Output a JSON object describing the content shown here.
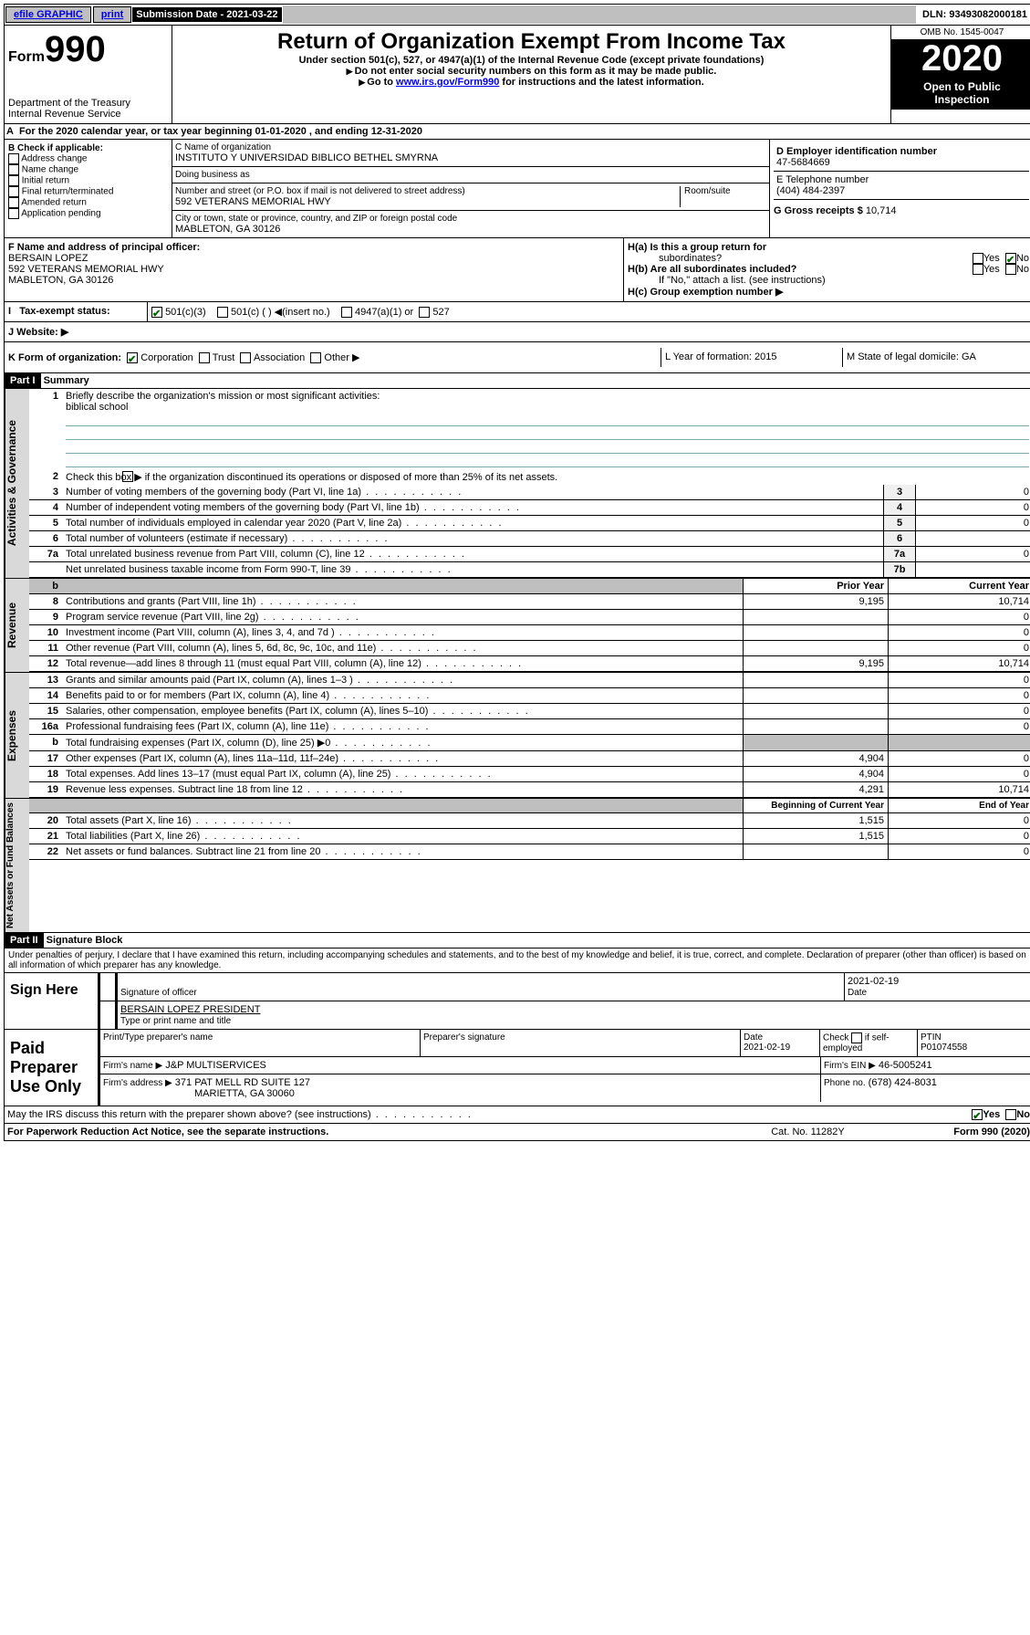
{
  "colors": {
    "accent": "#000000",
    "link": "#0000ee",
    "grey": "#bfbfbf",
    "rule": "#7aa"
  },
  "topbar": {
    "efile": "efile GRAPHIC",
    "print": "print",
    "sub_label": "Submission Date - 2021-03-22",
    "dln": "DLN: 93493082000181"
  },
  "header": {
    "form_word": "Form",
    "form_num": "990",
    "dept": "Department of the Treasury",
    "irs": "Internal Revenue Service",
    "title": "Return of Organization Exempt From Income Tax",
    "sub1": "Under section 501(c), 527, or 4947(a)(1) of the Internal Revenue Code (except private foundations)",
    "sub2": "Do not enter social security numbers on this form as it may be made public.",
    "sub3_a": "Go to ",
    "sub3_link": "www.irs.gov/Form990",
    "sub3_b": " for instructions and the latest information.",
    "omb": "OMB No. 1545-0047",
    "year": "2020",
    "inspect": "Open to Public Inspection"
  },
  "rowA": {
    "a": "A",
    "text": "For the 2020 calendar year, or tax year beginning 01-01-2020    , and ending 12-31-2020"
  },
  "boxB": {
    "hdr": "B Check if applicable:",
    "items": [
      "Address change",
      "Name change",
      "Initial return",
      "Final return/terminated",
      "Amended return",
      "Application pending"
    ]
  },
  "boxC": {
    "name_lbl": "C Name of organization",
    "name": "INSTITUTO Y UNIVERSIDAD BIBLICO BETHEL SMYRNA",
    "dba_lbl": "Doing business as",
    "dba": "",
    "addr_lbl": "Number and street (or P.O. box if mail is not delivered to street address)",
    "room_lbl": "Room/suite",
    "addr": "592 VETERANS MEMORIAL HWY",
    "city_lbl": "City or town, state or province, country, and ZIP or foreign postal code",
    "city": "MABLETON, GA  30126"
  },
  "boxD": {
    "ein_lbl": "D Employer identification number",
    "ein": "47-5684669",
    "tel_lbl": "E Telephone number",
    "tel": "(404) 484-2397",
    "gross_lbl": "G Gross receipts $",
    "gross": "10,714"
  },
  "boxF": {
    "lbl": "F  Name and address of principal officer:",
    "name": "BERSAIN LOPEZ",
    "addr": "592 VETERANS MEMORIAL HWY",
    "city": "MABLETON, GA  30126"
  },
  "boxH": {
    "a": "H(a)  Is this a group return for",
    "a2": "subordinates?",
    "b": "H(b)  Are all subordinates included?",
    "ifno": "If \"No,\" attach a list. (see instructions)",
    "c": "H(c)  Group exemption number ▶",
    "yes": "Yes",
    "no": "No"
  },
  "rowI": {
    "lbl": "Tax-exempt status:",
    "o1": "501(c)(3)",
    "o2": "501(c) (  ) ◀(insert no.)",
    "o3": "4947(a)(1) or",
    "o4": "527"
  },
  "rowJ": {
    "lbl": "J    Website: ▶"
  },
  "rowK": {
    "lbl": "K Form of organization:",
    "o1": "Corporation",
    "o2": "Trust",
    "o3": "Association",
    "o4": "Other ▶",
    "l": "L Year of formation: 2015",
    "m": "M State of legal domicile: GA"
  },
  "part1": {
    "bar": "Part I",
    "title": "Summary"
  },
  "gov": {
    "vtab": "Activities & Governance",
    "l1": "Briefly describe the organization's mission or most significant activities:",
    "l1v": "biblical school",
    "l2": "Check this box ▶         if the organization discontinued its operations or disposed of more than 25% of its net assets.",
    "rows": [
      {
        "n": "3",
        "d": "Number of voting members of the governing body (Part VI, line 1a)",
        "c": "3",
        "v": "0"
      },
      {
        "n": "4",
        "d": "Number of independent voting members of the governing body (Part VI, line 1b)",
        "c": "4",
        "v": "0"
      },
      {
        "n": "5",
        "d": "Total number of individuals employed in calendar year 2020 (Part V, line 2a)",
        "c": "5",
        "v": "0"
      },
      {
        "n": "6",
        "d": "Total number of volunteers (estimate if necessary)",
        "c": "6",
        "v": ""
      },
      {
        "n": "7a",
        "d": "Total unrelated business revenue from Part VIII, column (C), line 12",
        "c": "7a",
        "v": "0"
      },
      {
        "n": "",
        "d": "Net unrelated business taxable income from Form 990-T, line 39",
        "c": "7b",
        "v": ""
      }
    ]
  },
  "rev": {
    "vtab": "Revenue",
    "h1": "Prior Year",
    "h2": "Current Year",
    "rows": [
      {
        "n": "8",
        "d": "Contributions and grants (Part VIII, line 1h)",
        "p": "9,195",
        "c": "10,714"
      },
      {
        "n": "9",
        "d": "Program service revenue (Part VIII, line 2g)",
        "p": "",
        "c": "0"
      },
      {
        "n": "10",
        "d": "Investment income (Part VIII, column (A), lines 3, 4, and 7d )",
        "p": "",
        "c": "0"
      },
      {
        "n": "11",
        "d": "Other revenue (Part VIII, column (A), lines 5, 6d, 8c, 9c, 10c, and 11e)",
        "p": "",
        "c": "0"
      },
      {
        "n": "12",
        "d": "Total revenue—add lines 8 through 11 (must equal Part VIII, column (A), line 12)",
        "p": "9,195",
        "c": "10,714"
      }
    ]
  },
  "exp": {
    "vtab": "Expenses",
    "rows": [
      {
        "n": "13",
        "d": "Grants and similar amounts paid (Part IX, column (A), lines 1–3 )",
        "p": "",
        "c": "0"
      },
      {
        "n": "14",
        "d": "Benefits paid to or for members (Part IX, column (A), line 4)",
        "p": "",
        "c": "0"
      },
      {
        "n": "15",
        "d": "Salaries, other compensation, employee benefits (Part IX, column (A), lines 5–10)",
        "p": "",
        "c": "0"
      },
      {
        "n": "16a",
        "d": "Professional fundraising fees (Part IX, column (A), line 11e)",
        "p": "",
        "c": "0"
      },
      {
        "n": "b",
        "d": "Total fundraising expenses (Part IX, column (D), line 25) ▶0",
        "p": "grey",
        "c": "grey"
      },
      {
        "n": "17",
        "d": "Other expenses (Part IX, column (A), lines 11a–11d, 11f–24e)",
        "p": "4,904",
        "c": "0"
      },
      {
        "n": "18",
        "d": "Total expenses. Add lines 13–17 (must equal Part IX, column (A), line 25)",
        "p": "4,904",
        "c": "0"
      },
      {
        "n": "19",
        "d": "Revenue less expenses. Subtract line 18 from line 12",
        "p": "4,291",
        "c": "10,714"
      }
    ]
  },
  "net": {
    "vtab": "Net Assets or Fund Balances",
    "h1": "Beginning of Current Year",
    "h2": "End of Year",
    "rows": [
      {
        "n": "20",
        "d": "Total assets (Part X, line 16)",
        "p": "1,515",
        "c": "0"
      },
      {
        "n": "21",
        "d": "Total liabilities (Part X, line 26)",
        "p": "1,515",
        "c": "0"
      },
      {
        "n": "22",
        "d": "Net assets or fund balances. Subtract line 21 from line 20",
        "p": "",
        "c": "0"
      }
    ]
  },
  "part2": {
    "bar": "Part II",
    "title": "Signature Block",
    "decl": "Under penalties of perjury, I declare that I have examined this return, including accompanying schedules and statements, and to the best of my knowledge and belief, it is true, correct, and complete. Declaration of preparer (other than officer) is based on all information of which preparer has any knowledge."
  },
  "sign": {
    "lbl": "Sign Here",
    "sigoff": "Signature of officer",
    "date": "2021-02-19",
    "date_lbl": "Date",
    "name": "BERSAIN LOPEZ  PRESIDENT",
    "name_lbl": "Type or print name and title"
  },
  "paid": {
    "lbl": "Paid Preparer Use Only",
    "h1": "Print/Type preparer's name",
    "h2": "Preparer's signature",
    "h3": "Date",
    "h3v": "2021-02-19",
    "h4a": "Check",
    "h4b": "if self-employed",
    "h5": "PTIN",
    "h5v": "P01074558",
    "firm_lbl": "Firm's name   ▶",
    "firm": "J&P MULTISERVICES",
    "ein_lbl": "Firm's EIN ▶",
    "ein": "46-5005241",
    "addr_lbl": "Firm's address ▶",
    "addr1": "371 PAT MELL RD SUITE 127",
    "addr2": "MARIETTA, GA  30060",
    "phone_lbl": "Phone no.",
    "phone": "(678) 424-8031"
  },
  "discuss": {
    "q": "May the IRS discuss this return with the preparer shown above? (see instructions)",
    "yes": "Yes",
    "no": "No"
  },
  "foot": {
    "l": "For Paperwork Reduction Act Notice, see the separate instructions.",
    "m": "Cat. No. 11282Y",
    "r": "Form 990 (2020)"
  }
}
